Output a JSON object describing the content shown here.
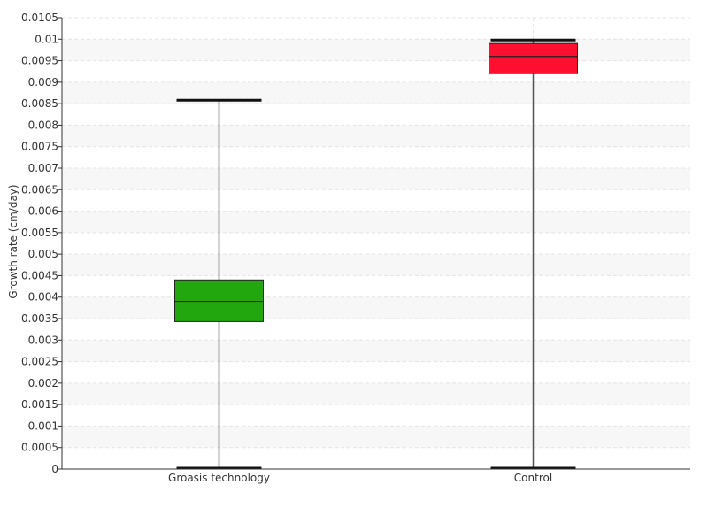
{
  "chart_data": {
    "type": "box",
    "ylabel": "Growth rate (cm/day)",
    "ylim": [
      0,
      0.0105
    ],
    "ytick_step": 0.0005,
    "yticks": [
      "0",
      "0.0005",
      "0.001",
      "0.0015",
      "0.002",
      "0.0025",
      "0.003",
      "0.0035",
      "0.004",
      "0.0045",
      "0.005",
      "0.0055",
      "0.006",
      "0.0065",
      "0.007",
      "0.0075",
      "0.008",
      "0.0085",
      "0.009",
      "0.0095",
      "0.01",
      "0.0105"
    ],
    "grid": true,
    "categories": [
      "Groasis technology",
      "Control"
    ],
    "boxes": [
      {
        "label": "Groasis technology",
        "min": 0,
        "q1": 0.00343,
        "median": 0.0039,
        "q3": 0.0044,
        "max": 0.00858,
        "color": "#22a80e"
      },
      {
        "label": "Control",
        "min": 0,
        "q1": 0.0092,
        "median": 0.0096,
        "q3": 0.0099,
        "max": 0.00998,
        "color": "#ff1030"
      }
    ]
  }
}
